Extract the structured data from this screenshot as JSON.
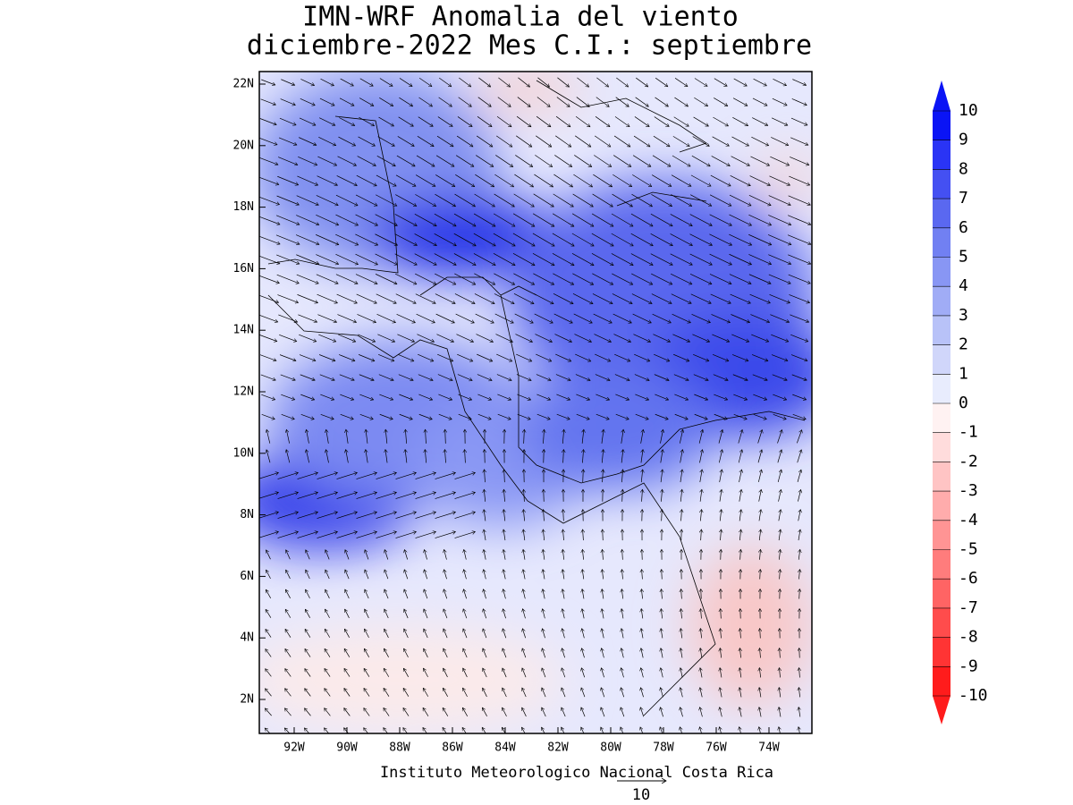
{
  "title": [
    "IMN-WRF Anomalia del viento",
    "diciembre-2022 Mes C.I.: septiembre"
  ],
  "map": {
    "lat_ticks": [
      "22N",
      "20N",
      "18N",
      "16N",
      "14N",
      "12N",
      "10N",
      "8N",
      "6N",
      "4N",
      "2N"
    ],
    "lon_ticks": [
      "92W",
      "90W",
      "88W",
      "86W",
      "84W",
      "82W",
      "80W",
      "78W",
      "76W",
      "74W"
    ]
  },
  "colorbar": {
    "levels": [
      10,
      9,
      8,
      7,
      6,
      5,
      4,
      3,
      2,
      1,
      0,
      -1,
      -2,
      -3,
      -4,
      -5,
      -6,
      -7,
      -8,
      -9,
      -10
    ],
    "colors": [
      "#0a14f5",
      "#2a34f5",
      "#4450f2",
      "#5a68f0",
      "#7180f2",
      "#8896f4",
      "#a0acf6",
      "#b8c2f8",
      "#d0d6fa",
      "#e8ecfd",
      "#fff2f2",
      "#ffdcdc",
      "#ffc4c4",
      "#ffacac",
      "#ff9494",
      "#ff7c7c",
      "#ff6464",
      "#ff4c4c",
      "#ff3434",
      "#ff1c1c"
    ]
  },
  "credit": "Instituto Meteorologico Nacional Costa Rica",
  "reference_vector": "10"
}
